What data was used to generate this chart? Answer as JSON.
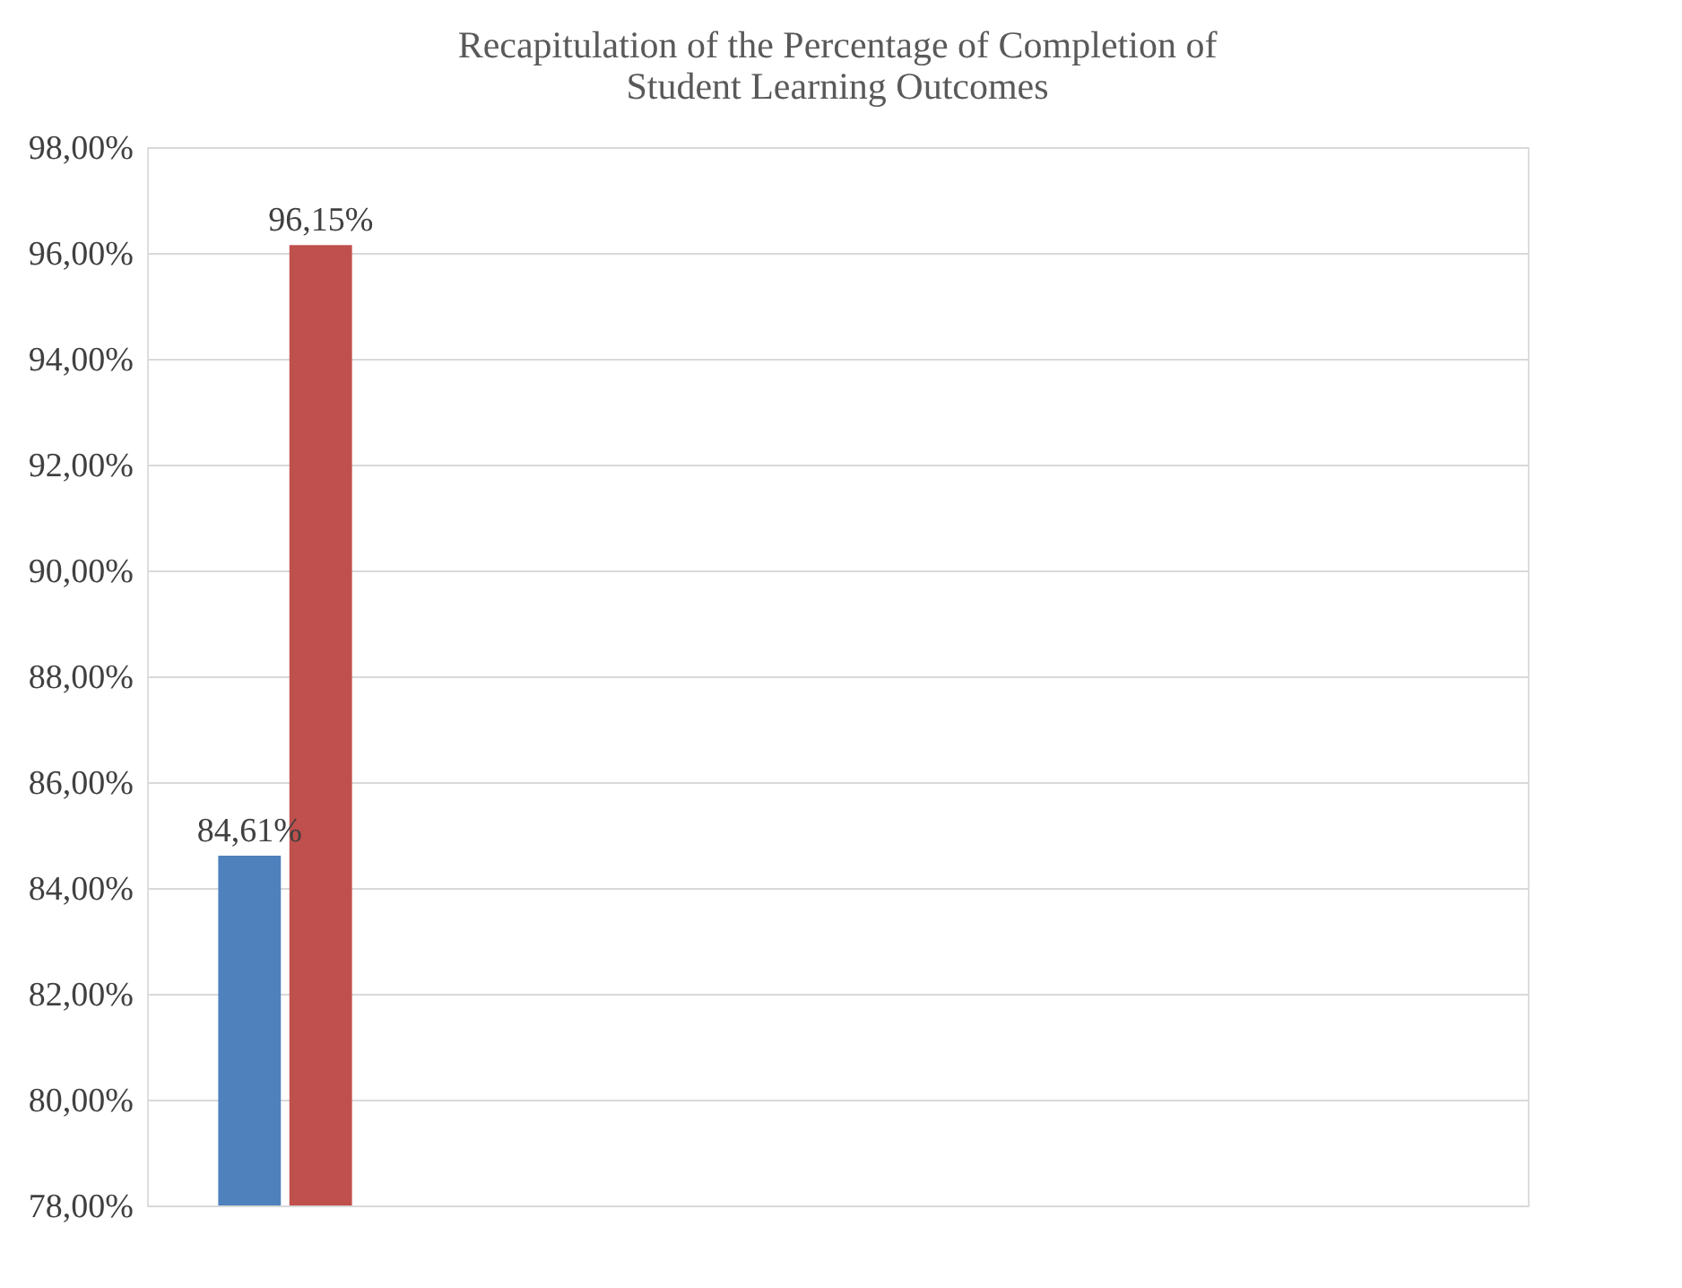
{
  "chart_data": {
    "type": "bar",
    "title": "Recapitulation of the Percentage of Completion of Student Learning Outcomes",
    "categories": [
      null,
      null,
      null,
      null,
      null
    ],
    "series": [
      {
        "color": "#4f81bd",
        "values": [
          84.61,
          null,
          null,
          null,
          null
        ],
        "value_labels": [
          "84,61%",
          null,
          null,
          null,
          null
        ]
      },
      {
        "color": "#c0504d",
        "values": [
          96.15,
          null,
          null,
          null,
          null
        ],
        "value_labels": [
          "96,15%",
          null,
          null,
          null,
          null
        ]
      }
    ],
    "ylim": [
      78,
      98
    ],
    "yticks": [
      {
        "value": 78,
        "label": "78,00%"
      },
      {
        "value": 80,
        "label": "80,00%"
      },
      {
        "value": 82,
        "label": "82,00%"
      },
      {
        "value": 84,
        "label": "84,00%"
      },
      {
        "value": 86,
        "label": "86,00%"
      },
      {
        "value": 88,
        "label": "88,00%"
      },
      {
        "value": 90,
        "label": "90,00%"
      },
      {
        "value": 92,
        "label": "92,00%"
      },
      {
        "value": 94,
        "label": "94,00%"
      },
      {
        "value": 96,
        "label": "96,00%"
      },
      {
        "value": 98,
        "label": "98,00%"
      }
    ],
    "grid": "y",
    "legend": false,
    "tick_labels": "y"
  }
}
